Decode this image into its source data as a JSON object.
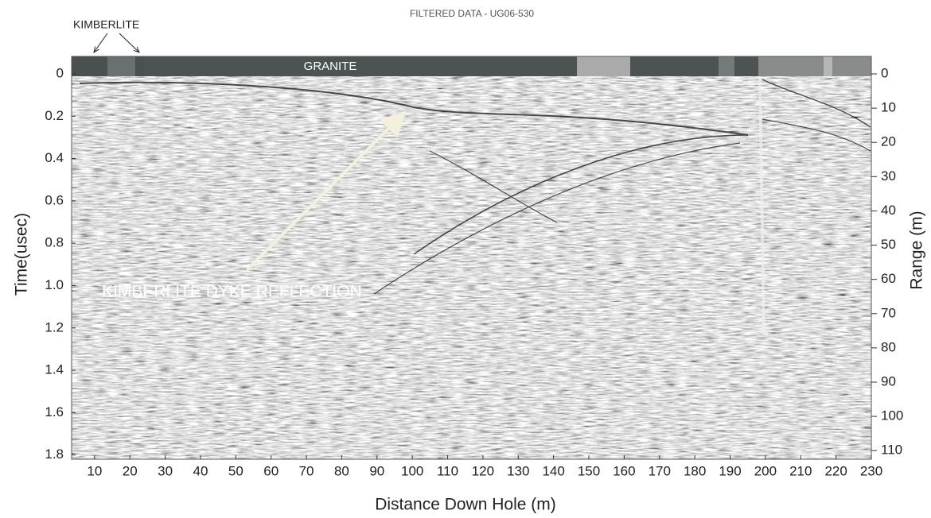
{
  "chart_data": {
    "type": "radargram",
    "title": "FILTERED DATA - UG06-530",
    "x_label": "Distance Down Hole (m)",
    "y_label": "Time(usec)",
    "y2_label": "Range (m)",
    "annotations": [
      "KIMBERLITE",
      "GRANITE",
      "KIMBERLITE DYKE REFLECTION"
    ],
    "xlim": [
      3.5,
      230
    ],
    "xticks": [
      10,
      20,
      30,
      40,
      50,
      60,
      70,
      80,
      90,
      100,
      110,
      120,
      130,
      140,
      150,
      160,
      170,
      180,
      190,
      200,
      210,
      220,
      230
    ],
    "ylim": [
      0,
      1.82
    ],
    "yticks": [
      0,
      0.2,
      0.4,
      0.6,
      0.8,
      {
        "value": 1,
        "label": "1.0"
      },
      1.2,
      1.4,
      1.6,
      1.8
    ],
    "y2lim": [
      0,
      112.5
    ],
    "y2ticks": [
      0,
      10,
      20,
      30,
      40,
      50,
      60,
      70,
      80,
      90,
      100,
      110
    ]
  }
}
